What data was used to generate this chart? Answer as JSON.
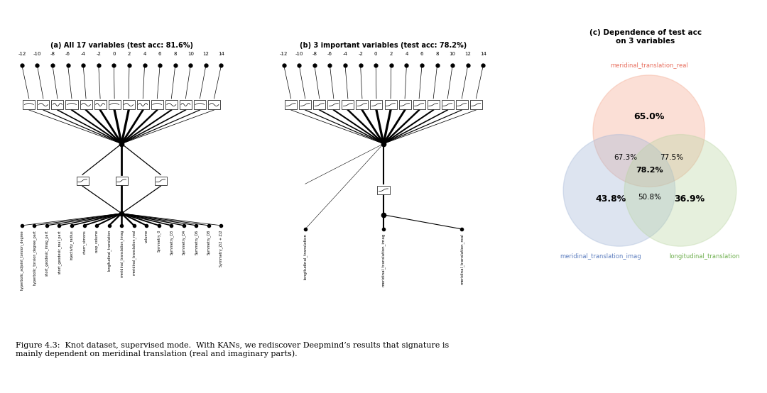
{
  "title_a": "(a) All 17 variables (test acc: 81.6%)",
  "title_b": "(b) 3 important variables (test acc: 78.2%)",
  "title_c": "(c) Dependence of test acc\non 3 variables",
  "fig_caption": "Figure 4.3:  Knot dataset, supervised mode.  With KANs, we rediscover Deepmind’s results that signature is\nmainly dependent on meridinal translation (real and imaginary parts).",
  "x_ticks_a": [
    -12,
    -10,
    -8,
    -6,
    -4,
    -2,
    0,
    2,
    4,
    6,
    8,
    10,
    12,
    14
  ],
  "x_ticks_b": [
    -12,
    -10,
    -8,
    -6,
    -4,
    -2,
    0,
    2,
    4,
    6,
    8,
    10,
    12,
    14
  ],
  "labels_a": [
    "hyperbolic_adjoint_torsion_degree",
    "hyperbolic_torsion_degree_part",
    "short_geodesic_imag_part",
    "short_geodesic_real_part",
    "injectivity_radius",
    "chern_simons",
    "cusp_volume",
    "longitudinal_translation",
    "meridinal_translation_imag",
    "meridinal_translation_real",
    "volume",
    "Symmetry_0",
    "Symmetry_D3",
    "Symmetry_D4",
    "Symmetry_D6",
    "Symmetry_D8",
    "Symmetry_Z/2 + Z/2"
  ],
  "labels_b": [
    "longitudinal_translation",
    "meridinal_translation_imag",
    "meridinal_translation_real"
  ],
  "venn_labels": {
    "A": "meridinal_translation_real",
    "B": "meridinal_translation_imag",
    "C": "longitudinal_translation"
  },
  "venn_values": {
    "A_only": "65.0%",
    "B_only": "43.8%",
    "C_only": "36.9%",
    "AB": "67.3%",
    "AC": "77.5%",
    "BC": "50.8%",
    "ABC": "78.2%"
  },
  "venn_colors": {
    "A": "#f4a58a",
    "B": "#a0b4d6",
    "C": "#b8d4a0"
  },
  "color_A": "#e87060",
  "color_B": "#6080c0",
  "color_C": "#70b050",
  "bg_color": "#ffffff"
}
